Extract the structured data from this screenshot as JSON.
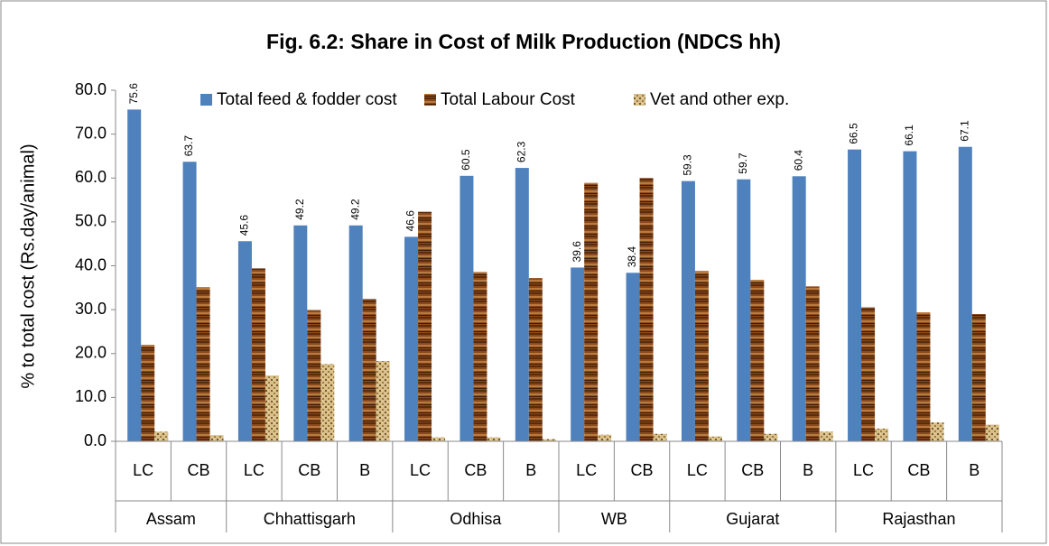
{
  "chart_data": {
    "type": "bar",
    "title": "Fig. 6.2: Share in Cost of Milk Production (NDCS hh)",
    "y_label": "% to total cost (Rs.day/animal)",
    "groups": [
      {
        "name": "Assam",
        "categories": [
          "LC",
          "CB"
        ]
      },
      {
        "name": "Chhattisgarh",
        "categories": [
          "LC",
          "CB",
          "B"
        ]
      },
      {
        "name": "Odhisa",
        "categories": [
          "LC",
          "CB",
          "B"
        ]
      },
      {
        "name": "WB",
        "categories": [
          "LC",
          "CB"
        ]
      },
      {
        "name": "Gujarat",
        "categories": [
          "LC",
          "CB",
          "B"
        ]
      },
      {
        "name": "Rajasthan",
        "categories": [
          "LC",
          "CB",
          "B"
        ]
      }
    ],
    "series": [
      {
        "name": "Total feed & fodder cost",
        "color": "#4f81bd",
        "values": [
          75.6,
          63.7,
          45.6,
          49.2,
          49.2,
          46.6,
          60.5,
          62.3,
          39.6,
          38.4,
          59.3,
          59.7,
          60.4,
          66.5,
          66.1,
          67.1
        ],
        "data_labels": true
      },
      {
        "name": "Total Labour Cost",
        "color": "#8b4a1c",
        "values": [
          22.0,
          35.1,
          39.4,
          29.9,
          32.4,
          52.3,
          38.6,
          37.2,
          58.9,
          60.0,
          38.8,
          36.8,
          35.3,
          30.5,
          29.4,
          29.0
        ]
      },
      {
        "name": "Vet and other exp.",
        "color": "#c8a96e",
        "values": [
          2.2,
          1.4,
          15.0,
          17.6,
          18.3,
          0.9,
          0.9,
          0.5,
          1.5,
          1.7,
          1.1,
          1.7,
          2.2,
          2.9,
          4.3,
          3.8
        ]
      }
    ],
    "ylim": [
      0,
      80
    ],
    "yticks": [
      {
        "value": 0,
        "label": "0.0"
      },
      {
        "value": 10,
        "label": "10.0"
      },
      {
        "value": 20,
        "label": "20.0"
      },
      {
        "value": 30,
        "label": "30.0"
      },
      {
        "value": 40,
        "label": "40.0"
      },
      {
        "value": 50,
        "label": "50.0"
      },
      {
        "value": 60,
        "label": "60.0"
      },
      {
        "value": 70,
        "label": "70.0"
      },
      {
        "value": 80,
        "label": "80.0"
      }
    ],
    "grid": false,
    "legend": "top"
  }
}
